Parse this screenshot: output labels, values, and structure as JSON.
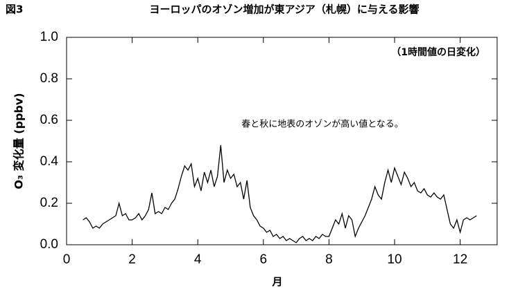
{
  "chart_data": {
    "type": "line",
    "figure_label": "図3",
    "title": "ヨーロッパのオゾン増加が東アジア（札幌）に与える影響",
    "annotations": [
      "（1時間値の日変化）",
      "春と秋に地表のオゾンが高い値となる。"
    ],
    "x_label": "月",
    "y_label": "O₃ 変化量 (ppbv)",
    "xlim": [
      0,
      13
    ],
    "ylim": [
      0,
      1
    ],
    "xticks": [
      0,
      2,
      4,
      6,
      8,
      10,
      12
    ],
    "yticks": [
      {
        "value": 0,
        "label": "0.0"
      },
      0.2,
      0.4,
      0.6,
      0.8,
      {
        "value": 1,
        "label": "1.0"
      }
    ],
    "x": [
      0.5,
      0.6,
      0.7,
      0.8,
      0.9,
      1.0,
      1.1,
      1.2,
      1.3,
      1.4,
      1.5,
      1.6,
      1.7,
      1.8,
      1.9,
      2.0,
      2.1,
      2.2,
      2.3,
      2.4,
      2.5,
      2.6,
      2.7,
      2.8,
      2.9,
      3.0,
      3.1,
      3.2,
      3.3,
      3.4,
      3.5,
      3.6,
      3.7,
      3.8,
      3.9,
      4.0,
      4.1,
      4.2,
      4.3,
      4.4,
      4.5,
      4.6,
      4.7,
      4.8,
      4.9,
      5.0,
      5.1,
      5.2,
      5.3,
      5.4,
      5.5,
      5.6,
      5.7,
      5.8,
      5.9,
      6.0,
      6.1,
      6.2,
      6.3,
      6.4,
      6.5,
      6.6,
      6.7,
      6.8,
      6.9,
      7.0,
      7.1,
      7.2,
      7.3,
      7.4,
      7.5,
      7.6,
      7.7,
      7.8,
      7.9,
      8.0,
      8.1,
      8.2,
      8.3,
      8.4,
      8.5,
      8.6,
      8.7,
      8.8,
      8.9,
      9.0,
      9.1,
      9.2,
      9.3,
      9.4,
      9.5,
      9.6,
      9.7,
      9.8,
      9.9,
      10.0,
      10.1,
      10.2,
      10.3,
      10.4,
      10.5,
      10.6,
      10.7,
      10.8,
      10.9,
      11.0,
      11.1,
      11.2,
      11.3,
      11.4,
      11.5,
      11.6,
      11.7,
      11.8,
      11.9,
      12.0,
      12.1,
      12.2,
      12.3,
      12.4,
      12.5
    ],
    "series": [
      {
        "color": "#000000",
        "values": [
          0.12,
          0.13,
          0.11,
          0.08,
          0.09,
          0.08,
          0.1,
          0.11,
          0.12,
          0.13,
          0.14,
          0.2,
          0.14,
          0.15,
          0.12,
          0.12,
          0.13,
          0.15,
          0.12,
          0.14,
          0.17,
          0.25,
          0.15,
          0.16,
          0.15,
          0.18,
          0.17,
          0.2,
          0.22,
          0.27,
          0.33,
          0.38,
          0.36,
          0.39,
          0.28,
          0.32,
          0.26,
          0.35,
          0.3,
          0.36,
          0.28,
          0.33,
          0.48,
          0.3,
          0.36,
          0.32,
          0.34,
          0.28,
          0.3,
          0.22,
          0.31,
          0.18,
          0.14,
          0.12,
          0.09,
          0.08,
          0.06,
          0.07,
          0.04,
          0.05,
          0.03,
          0.04,
          0.02,
          0.03,
          0.02,
          0.01,
          0.03,
          0.04,
          0.02,
          0.03,
          0.02,
          0.04,
          0.03,
          0.05,
          0.04,
          0.04,
          0.08,
          0.12,
          0.1,
          0.15,
          0.08,
          0.14,
          0.12,
          0.04,
          0.08,
          0.11,
          0.14,
          0.18,
          0.22,
          0.28,
          0.24,
          0.22,
          0.3,
          0.36,
          0.3,
          0.37,
          0.33,
          0.29,
          0.35,
          0.32,
          0.28,
          0.3,
          0.26,
          0.25,
          0.27,
          0.24,
          0.23,
          0.25,
          0.23,
          0.22,
          0.24,
          0.17,
          0.1,
          0.08,
          0.12,
          0.06,
          0.12,
          0.13,
          0.12,
          0.13,
          0.14
        ]
      }
    ]
  }
}
